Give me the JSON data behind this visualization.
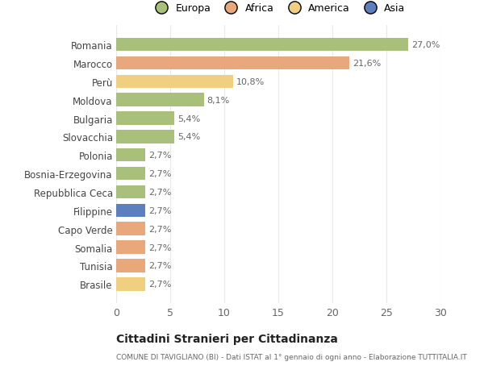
{
  "categories": [
    "Romania",
    "Marocco",
    "Perù",
    "Moldova",
    "Bulgaria",
    "Slovacchia",
    "Polonia",
    "Bosnia-Erzegovina",
    "Repubblica Ceca",
    "Filippine",
    "Capo Verde",
    "Somalia",
    "Tunisia",
    "Brasile"
  ],
  "values": [
    27.0,
    21.6,
    10.8,
    8.1,
    5.4,
    5.4,
    2.7,
    2.7,
    2.7,
    2.7,
    2.7,
    2.7,
    2.7,
    2.7
  ],
  "labels": [
    "27,0%",
    "21,6%",
    "10,8%",
    "8,1%",
    "5,4%",
    "5,4%",
    "2,7%",
    "2,7%",
    "2,7%",
    "2,7%",
    "2,7%",
    "2,7%",
    "2,7%",
    "2,7%"
  ],
  "colors": [
    "#a8c07a",
    "#e8a87c",
    "#f0d080",
    "#a8c07a",
    "#a8c07a",
    "#a8c07a",
    "#a8c07a",
    "#a8c07a",
    "#a8c07a",
    "#5b7fbf",
    "#e8a87c",
    "#e8a87c",
    "#e8a87c",
    "#f0d080"
  ],
  "legend_labels": [
    "Europa",
    "Africa",
    "America",
    "Asia"
  ],
  "legend_colors": [
    "#a8c07a",
    "#e8a87c",
    "#f0d080",
    "#5b7fbf"
  ],
  "xlim": [
    0,
    30
  ],
  "xticks": [
    0,
    5,
    10,
    15,
    20,
    25,
    30
  ],
  "title": "Cittadini Stranieri per Cittadinanza",
  "subtitle": "COMUNE DI TAVIGLIANO (BI) - Dati ISTAT al 1° gennaio di ogni anno - Elaborazione TUTTITALIA.IT",
  "background_color": "#ffffff",
  "grid_color": "#e8e8e8"
}
